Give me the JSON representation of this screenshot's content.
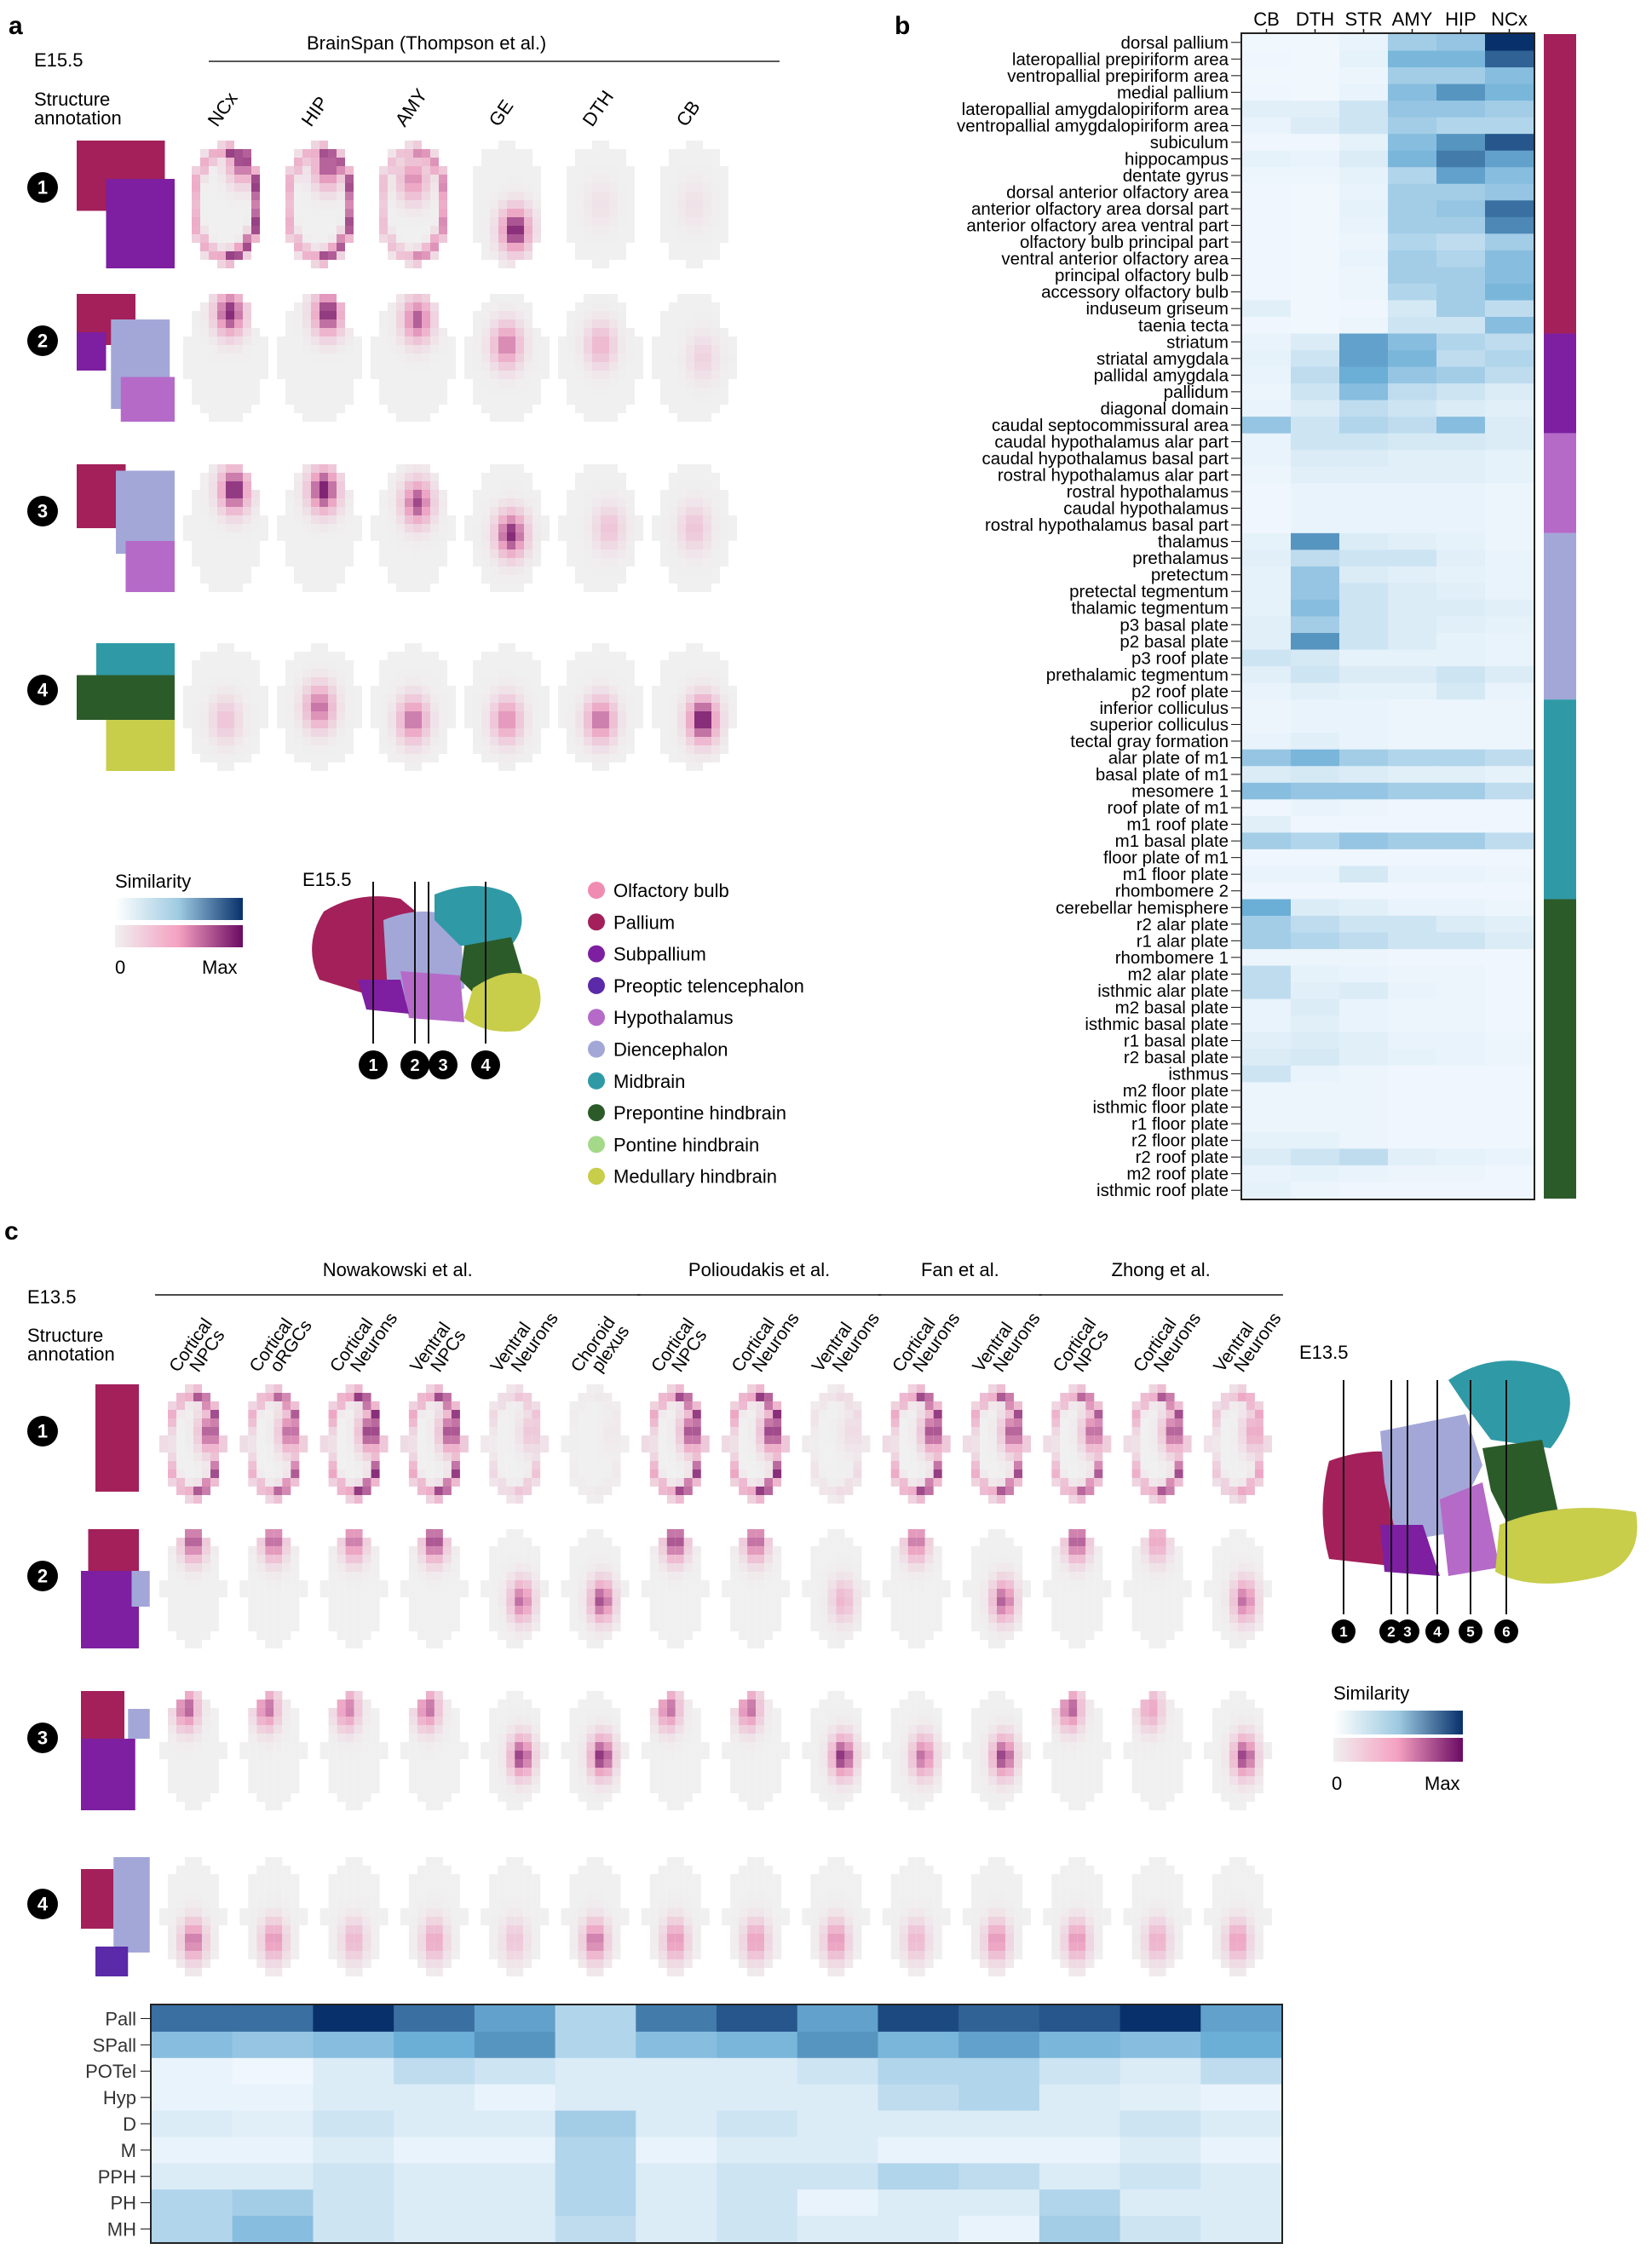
{
  "panels": {
    "a": {
      "letter": "a",
      "stage": "E15.5",
      "study": "BrainSpan (Thompson et al.)",
      "annotation_label": [
        "Structure",
        "annotation"
      ],
      "columns": [
        "NCx",
        "HIP",
        "AMY",
        "GE",
        "DTH",
        "CB"
      ],
      "rows": [
        "1",
        "2",
        "3",
        "4"
      ],
      "similarity_title": "Similarity",
      "similarity_min": "0",
      "similarity_max": "Max",
      "atlas_stage": "E15.5",
      "section_numbers": [
        "1",
        "2",
        "3",
        "4"
      ],
      "legend": [
        {
          "label": "Olfactory bulb",
          "color": "#f08bb1"
        },
        {
          "label": "Pallium",
          "color": "#a3205a"
        },
        {
          "label": "Subpallium",
          "color": "#7d1fa0"
        },
        {
          "label": "Preoptic telencephalon",
          "color": "#5a2aa8"
        },
        {
          "label": "Hypothalamus",
          "color": "#b56ac8"
        },
        {
          "label": "Diencephalon",
          "color": "#a3a7d8"
        },
        {
          "label": "Midbrain",
          "color": "#2f9aa6"
        },
        {
          "label": "Prepontine hindbrain",
          "color": "#2c5b2a"
        },
        {
          "label": "Pontine hindbrain",
          "color": "#a5d98a"
        },
        {
          "label": "Medullary hindbrain",
          "color": "#c8cd4a"
        }
      ],
      "maxima": [
        [
          0.85,
          0.8,
          0.6,
          0.95,
          0.1,
          0.1
        ],
        [
          0.9,
          0.92,
          0.75,
          0.65,
          0.4,
          0.2
        ],
        [
          0.95,
          0.95,
          0.8,
          0.9,
          0.3,
          0.3
        ],
        [
          0.3,
          0.7,
          0.7,
          0.6,
          0.7,
          1.0
        ]
      ]
    },
    "b": {
      "letter": "b",
      "columns": [
        "CB",
        "DTH",
        "STR",
        "AMY",
        "HIP",
        "NCx"
      ],
      "rows": [
        "dorsal pallium",
        "lateropallial prepiriform area",
        "ventropallial prepiriform area",
        "medial pallium",
        "lateropallial amygdalopiriform area",
        "ventropallial amygdalopiriform area",
        "subiculum",
        "hippocampus",
        "dentate gyrus",
        "dorsal anterior olfactory area",
        "anterior olfactory area dorsal part",
        "anterior olfactory area ventral part",
        "olfactory bulb principal part",
        "ventral anterior olfactory area",
        "principal olfactory bulb",
        "accessory olfactory bulb",
        "induseum griseum",
        "taenia tecta",
        "striatum",
        "striatal amygdala",
        "pallidal amygdala",
        "pallidum",
        "diagonal domain",
        "caudal septocommissural area",
        "caudal hypothalamus alar part",
        "caudal hypothalamus basal part",
        "rostral hypothalamus alar part",
        "rostral hypothalamus",
        "caudal hypothalamus",
        "rostral hypothalamus basal part",
        "thalamus",
        "prethalamus",
        "pretectum",
        "pretectal tegmentum",
        "thalamic tegmentum",
        "p3 basal plate",
        "p2 basal plate",
        "p3 roof plate",
        "prethalamic tegmentum",
        "p2 roof plate",
        "inferior colliculus",
        "superior colliculus",
        "tectal gray formation",
        "alar plate of m1",
        "basal plate of m1",
        "mesomere 1",
        "roof plate of m1",
        "m1 roof plate",
        "m1 basal plate",
        "floor plate of m1",
        "m1 floor plate",
        "rhombomere 2",
        "cerebellar hemisphere",
        "r2 alar plate",
        "r1 alar plate",
        "rhombomere 1",
        "m2 alar plate",
        "isthmic alar plate",
        "m2 basal plate",
        "isthmic basal plate",
        "r1 basal plate",
        "r2 basal plate",
        "isthmus",
        "m2 floor plate",
        "isthmic floor plate",
        "r1 floor plate",
        "r2 floor plate",
        "r2 roof plate",
        "m2 roof plate",
        "isthmic roof plate"
      ],
      "values": [
        [
          0.02,
          0.02,
          0.05,
          0.3,
          0.35,
          1.0
        ],
        [
          0.03,
          0.02,
          0.06,
          0.45,
          0.45,
          0.8
        ],
        [
          0.02,
          0.02,
          0.04,
          0.3,
          0.3,
          0.4
        ],
        [
          0.03,
          0.02,
          0.05,
          0.4,
          0.6,
          0.45
        ],
        [
          0.08,
          0.08,
          0.15,
          0.35,
          0.35,
          0.3
        ],
        [
          0.05,
          0.1,
          0.15,
          0.3,
          0.25,
          0.25
        ],
        [
          0.03,
          0.03,
          0.06,
          0.4,
          0.6,
          0.85
        ],
        [
          0.06,
          0.05,
          0.1,
          0.45,
          0.7,
          0.55
        ],
        [
          0.04,
          0.04,
          0.06,
          0.25,
          0.55,
          0.4
        ],
        [
          0.03,
          0.02,
          0.05,
          0.3,
          0.3,
          0.35
        ],
        [
          0.03,
          0.02,
          0.06,
          0.3,
          0.35,
          0.75
        ],
        [
          0.03,
          0.02,
          0.05,
          0.3,
          0.3,
          0.65
        ],
        [
          0.03,
          0.02,
          0.04,
          0.25,
          0.2,
          0.3
        ],
        [
          0.03,
          0.02,
          0.05,
          0.3,
          0.25,
          0.4
        ],
        [
          0.03,
          0.02,
          0.04,
          0.3,
          0.3,
          0.4
        ],
        [
          0.03,
          0.02,
          0.04,
          0.25,
          0.3,
          0.45
        ],
        [
          0.08,
          0.02,
          0.03,
          0.12,
          0.3,
          0.2
        ],
        [
          0.03,
          0.02,
          0.04,
          0.15,
          0.15,
          0.4
        ],
        [
          0.05,
          0.1,
          0.55,
          0.4,
          0.25,
          0.2
        ],
        [
          0.06,
          0.15,
          0.55,
          0.45,
          0.2,
          0.25
        ],
        [
          0.05,
          0.2,
          0.5,
          0.35,
          0.3,
          0.2
        ],
        [
          0.04,
          0.15,
          0.4,
          0.2,
          0.15,
          0.1
        ],
        [
          0.05,
          0.1,
          0.2,
          0.15,
          0.1,
          0.08
        ],
        [
          0.35,
          0.15,
          0.25,
          0.2,
          0.4,
          0.1
        ],
        [
          0.05,
          0.15,
          0.15,
          0.12,
          0.12,
          0.1
        ],
        [
          0.05,
          0.1,
          0.1,
          0.08,
          0.08,
          0.06
        ],
        [
          0.04,
          0.08,
          0.08,
          0.08,
          0.08,
          0.06
        ],
        [
          0.03,
          0.05,
          0.05,
          0.05,
          0.05,
          0.04
        ],
        [
          0.03,
          0.05,
          0.05,
          0.05,
          0.05,
          0.04
        ],
        [
          0.03,
          0.05,
          0.05,
          0.05,
          0.05,
          0.04
        ],
        [
          0.06,
          0.6,
          0.1,
          0.08,
          0.06,
          0.04
        ],
        [
          0.08,
          0.2,
          0.15,
          0.15,
          0.08,
          0.05
        ],
        [
          0.06,
          0.35,
          0.1,
          0.08,
          0.06,
          0.05
        ],
        [
          0.06,
          0.35,
          0.15,
          0.1,
          0.08,
          0.05
        ],
        [
          0.06,
          0.4,
          0.15,
          0.1,
          0.1,
          0.08
        ],
        [
          0.08,
          0.3,
          0.15,
          0.1,
          0.08,
          0.06
        ],
        [
          0.08,
          0.6,
          0.15,
          0.1,
          0.06,
          0.05
        ],
        [
          0.15,
          0.12,
          0.06,
          0.06,
          0.06,
          0.05
        ],
        [
          0.08,
          0.15,
          0.1,
          0.1,
          0.15,
          0.1
        ],
        [
          0.05,
          0.08,
          0.06,
          0.06,
          0.12,
          0.05
        ],
        [
          0.04,
          0.05,
          0.05,
          0.04,
          0.04,
          0.04
        ],
        [
          0.04,
          0.05,
          0.05,
          0.04,
          0.04,
          0.04
        ],
        [
          0.05,
          0.08,
          0.05,
          0.04,
          0.04,
          0.04
        ],
        [
          0.35,
          0.45,
          0.3,
          0.25,
          0.25,
          0.2
        ],
        [
          0.1,
          0.12,
          0.1,
          0.08,
          0.08,
          0.06
        ],
        [
          0.4,
          0.35,
          0.35,
          0.3,
          0.3,
          0.2
        ],
        [
          0.03,
          0.05,
          0.04,
          0.03,
          0.03,
          0.03
        ],
        [
          0.08,
          0.03,
          0.03,
          0.03,
          0.03,
          0.03
        ],
        [
          0.3,
          0.25,
          0.35,
          0.3,
          0.3,
          0.2
        ],
        [
          0.03,
          0.03,
          0.03,
          0.03,
          0.03,
          0.03
        ],
        [
          0.05,
          0.05,
          0.12,
          0.05,
          0.05,
          0.04
        ],
        [
          0.03,
          0.03,
          0.03,
          0.03,
          0.03,
          0.03
        ],
        [
          0.5,
          0.1,
          0.08,
          0.05,
          0.05,
          0.04
        ],
        [
          0.3,
          0.2,
          0.15,
          0.15,
          0.1,
          0.08
        ],
        [
          0.3,
          0.25,
          0.2,
          0.15,
          0.15,
          0.1
        ],
        [
          0.04,
          0.04,
          0.04,
          0.03,
          0.03,
          0.03
        ],
        [
          0.2,
          0.06,
          0.05,
          0.04,
          0.04,
          0.03
        ],
        [
          0.2,
          0.08,
          0.1,
          0.05,
          0.04,
          0.03
        ],
        [
          0.05,
          0.1,
          0.05,
          0.04,
          0.04,
          0.03
        ],
        [
          0.05,
          0.08,
          0.05,
          0.04,
          0.04,
          0.03
        ],
        [
          0.08,
          0.1,
          0.08,
          0.05,
          0.05,
          0.04
        ],
        [
          0.1,
          0.12,
          0.08,
          0.06,
          0.05,
          0.04
        ],
        [
          0.15,
          0.05,
          0.04,
          0.03,
          0.03,
          0.03
        ],
        [
          0.04,
          0.04,
          0.04,
          0.03,
          0.03,
          0.03
        ],
        [
          0.04,
          0.04,
          0.04,
          0.03,
          0.03,
          0.03
        ],
        [
          0.04,
          0.04,
          0.04,
          0.03,
          0.03,
          0.03
        ],
        [
          0.06,
          0.06,
          0.04,
          0.03,
          0.03,
          0.03
        ],
        [
          0.1,
          0.15,
          0.2,
          0.08,
          0.06,
          0.05
        ],
        [
          0.05,
          0.06,
          0.05,
          0.04,
          0.04,
          0.03
        ],
        [
          0.06,
          0.04,
          0.03,
          0.03,
          0.03,
          0.03
        ]
      ],
      "region_bar": [
        {
          "rows": 18,
          "color": "#a3205a"
        },
        {
          "rows": 6,
          "color": "#7d1fa0"
        },
        {
          "rows": 6,
          "color": "#b56ac8"
        },
        {
          "rows": 10,
          "color": "#a3a7d8"
        },
        {
          "rows": 12,
          "color": "#2f9aa6"
        },
        {
          "rows": 18,
          "color": "#2c5b2a"
        }
      ]
    },
    "c": {
      "letter": "c",
      "stage": "E13.5",
      "annotation_label": [
        "Structure",
        "annotation"
      ],
      "studies": [
        {
          "name": "Nowakowski et al.",
          "span": [
            0,
            5
          ]
        },
        {
          "name": "Polioudakis et al.",
          "span": [
            6,
            8
          ]
        },
        {
          "name": "Fan et al.",
          "span": [
            9,
            10
          ]
        },
        {
          "name": "Zhong et al.",
          "span": [
            11,
            13
          ]
        }
      ],
      "columns": [
        [
          "Cortical",
          "NPCs"
        ],
        [
          "Cortical",
          "oRGCs"
        ],
        [
          "Cortical",
          "Neurons"
        ],
        [
          "Ventral",
          "NPCs"
        ],
        [
          "Ventral",
          "Neurons"
        ],
        [
          "Choroid",
          "plexus"
        ],
        [
          "Cortical",
          "NPCs"
        ],
        [
          "Cortical",
          "Neurons"
        ],
        [
          "Ventral",
          "Neurons"
        ],
        [
          "Cortical",
          "Neurons"
        ],
        [
          "Ventral",
          "Neurons"
        ],
        [
          "Cortical",
          "NPCs"
        ],
        [
          "Cortical",
          "Neurons"
        ],
        [
          "Ventral",
          "Neurons"
        ]
      ],
      "rows": [
        "1",
        "2",
        "3",
        "4"
      ],
      "atlas_stage": "E13.5",
      "section_numbers": [
        "1",
        "2",
        "3",
        "4",
        "5",
        "6"
      ],
      "similarity_title": "Similarity",
      "similarity_min": "0",
      "similarity_max": "Max",
      "heatmap_rows": [
        "Pall",
        "SPall",
        "POTel",
        "Hyp",
        "D",
        "M",
        "PPH",
        "PH",
        "MH"
      ],
      "heatmap_values": [
        [
          0.75,
          0.75,
          1.0,
          0.75,
          0.55,
          0.25,
          0.7,
          0.85,
          0.55,
          0.9,
          0.8,
          0.85,
          1.0,
          0.55
        ],
        [
          0.4,
          0.35,
          0.4,
          0.5,
          0.6,
          0.25,
          0.4,
          0.45,
          0.6,
          0.45,
          0.55,
          0.45,
          0.4,
          0.5
        ],
        [
          0.05,
          0.03,
          0.1,
          0.2,
          0.15,
          0.1,
          0.1,
          0.1,
          0.15,
          0.25,
          0.25,
          0.15,
          0.1,
          0.2
        ],
        [
          0.05,
          0.05,
          0.1,
          0.1,
          0.05,
          0.1,
          0.1,
          0.1,
          0.1,
          0.2,
          0.25,
          0.1,
          0.08,
          0.05
        ],
        [
          0.1,
          0.08,
          0.15,
          0.1,
          0.1,
          0.3,
          0.1,
          0.15,
          0.1,
          0.1,
          0.1,
          0.1,
          0.15,
          0.1
        ],
        [
          0.05,
          0.05,
          0.1,
          0.05,
          0.05,
          0.25,
          0.05,
          0.1,
          0.1,
          0.05,
          0.05,
          0.05,
          0.1,
          0.05
        ],
        [
          0.1,
          0.1,
          0.15,
          0.1,
          0.1,
          0.25,
          0.1,
          0.15,
          0.15,
          0.25,
          0.2,
          0.1,
          0.15,
          0.1
        ],
        [
          0.25,
          0.3,
          0.15,
          0.1,
          0.1,
          0.25,
          0.1,
          0.15,
          0.05,
          0.1,
          0.1,
          0.25,
          0.1,
          0.1
        ],
        [
          0.25,
          0.4,
          0.15,
          0.1,
          0.1,
          0.2,
          0.1,
          0.15,
          0.1,
          0.1,
          0.05,
          0.3,
          0.15,
          0.1
        ]
      ],
      "maxima": [
        [
          0.8,
          0.75,
          0.9,
          0.85,
          0.3,
          0.05,
          0.85,
          0.9,
          0.15,
          0.85,
          0.8,
          0.75,
          0.8,
          0.5
        ],
        [
          0.8,
          0.75,
          0.7,
          0.85,
          0.7,
          0.8,
          0.85,
          0.75,
          0.4,
          0.7,
          0.75,
          0.8,
          0.5,
          0.7
        ],
        [
          0.75,
          0.7,
          0.65,
          0.7,
          0.85,
          0.9,
          0.7,
          0.7,
          0.9,
          0.7,
          0.85,
          0.75,
          0.5,
          0.85
        ],
        [
          0.7,
          0.6,
          0.4,
          0.5,
          0.3,
          0.7,
          0.6,
          0.55,
          0.6,
          0.4,
          0.6,
          0.6,
          0.45,
          0.55
        ]
      ]
    }
  },
  "colors": {
    "blue_low": "#f4f8fc",
    "blue_high": "#08306b",
    "pink_low": "#f0f0f0",
    "pink_mid": "#e8a0c0",
    "pink_high": "#6a0a63",
    "pallium": "#a3205a",
    "subpallium": "#7d1fa0",
    "preoptic": "#5a2aa8",
    "diencephalon": "#a3a7d8",
    "midbrain": "#2f9aa6",
    "prepontine": "#2c5b2a",
    "medullary": "#c8cd4a",
    "hypothalamus": "#b56ac8"
  }
}
